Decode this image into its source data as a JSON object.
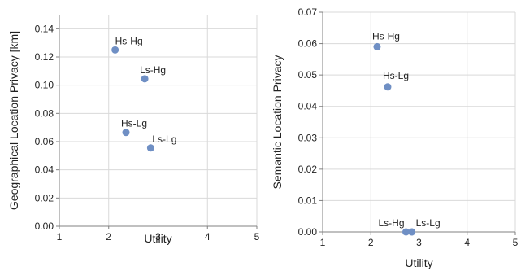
{
  "chart_data": [
    {
      "type": "scatter",
      "xlabel": "Utility",
      "ylabel": "Geographical Location Privacy [km]",
      "xlim": [
        1,
        5
      ],
      "ylim": [
        0,
        0.15
      ],
      "xticks": [
        "1",
        "2",
        "3",
        "4",
        "5"
      ],
      "yticks": [
        "0.00",
        "0.02",
        "0.04",
        "0.06",
        "0.08",
        "0.10",
        "0.12",
        "0.14"
      ],
      "grid": true,
      "marker_color": "#6f8fc4",
      "points": [
        {
          "label": "Hs-Hg",
          "x": 2.13,
          "y": 0.125
        },
        {
          "label": "Ls-Hg",
          "x": 2.73,
          "y": 0.1045
        },
        {
          "label": "Hs-Lg",
          "x": 2.35,
          "y": 0.0665
        },
        {
          "label": "Ls-Lg",
          "x": 2.85,
          "y": 0.0555
        }
      ]
    },
    {
      "type": "scatter",
      "xlabel": "Utility",
      "ylabel": "Semantic Location Privacy",
      "xlim": [
        1,
        5
      ],
      "ylim": [
        0,
        0.07
      ],
      "xticks": [
        "1",
        "2",
        "3",
        "4",
        "5"
      ],
      "yticks": [
        "0.00",
        "0.01",
        "0.02",
        "0.03",
        "0.04",
        "0.05",
        "0.06",
        "0.07"
      ],
      "grid": true,
      "marker_color": "#6f8fc4",
      "points": [
        {
          "label": "Hs-Hg",
          "x": 2.13,
          "y": 0.059
        },
        {
          "label": "Hs-Lg",
          "x": 2.35,
          "y": 0.0462
        },
        {
          "label": "Ls-Hg",
          "x": 2.73,
          "y": 0.0
        },
        {
          "label": "Ls-Lg",
          "x": 2.85,
          "y": 0.0
        }
      ]
    }
  ]
}
